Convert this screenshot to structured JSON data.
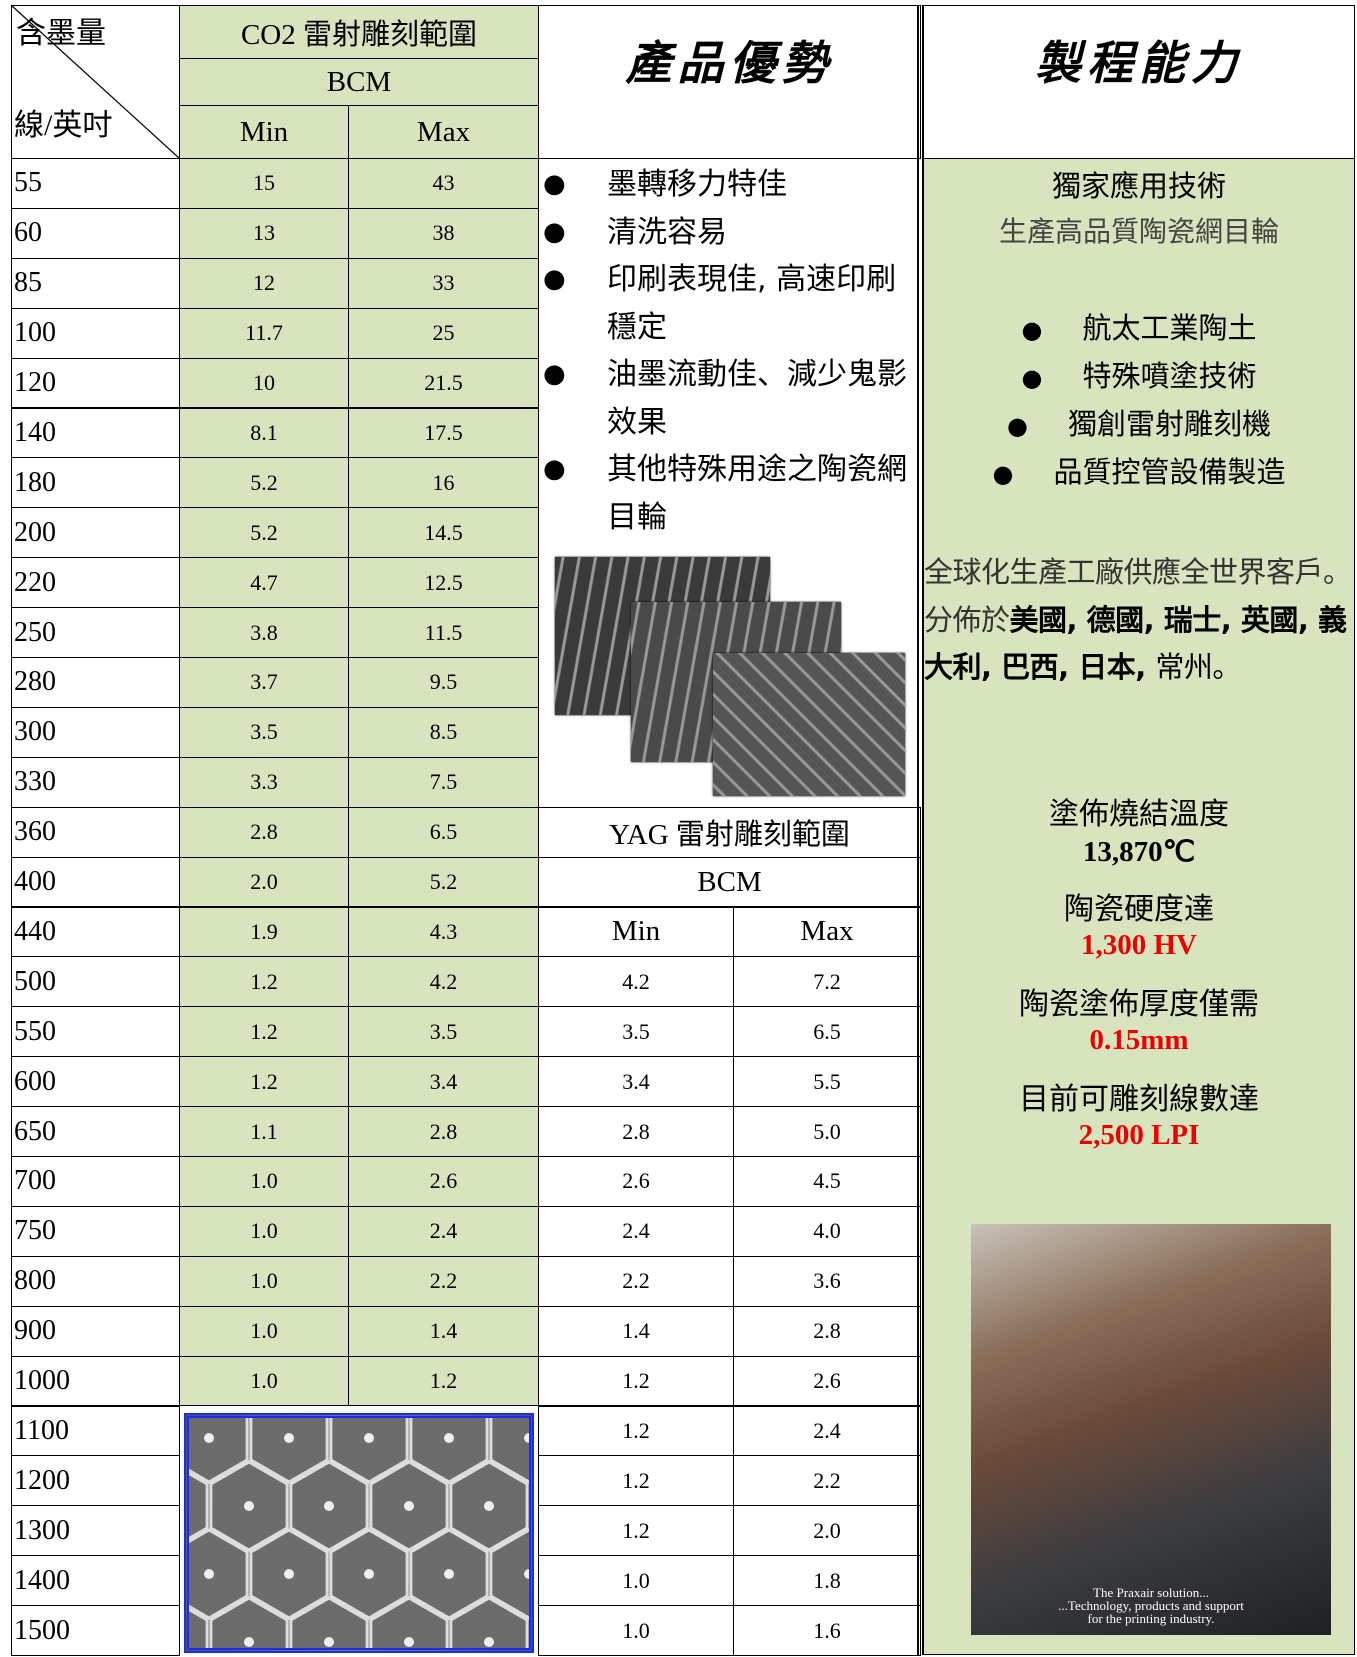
{
  "co2_table": {
    "corner_top": "含墨量",
    "corner_bottom": "線/英吋",
    "title": "CO2 雷射雕刻範圍",
    "unit": "BCM",
    "columns": [
      "Min",
      "Max"
    ],
    "lines": [
      "55",
      "60",
      "85",
      "100",
      "120",
      "140",
      "180",
      "200",
      "220",
      "250",
      "280",
      "300",
      "330",
      "360",
      "400",
      "440",
      "500",
      "550",
      "600",
      "650",
      "700",
      "750",
      "800",
      "900",
      "1000",
      "1100",
      "1200",
      "1300",
      "1400",
      "1500"
    ],
    "rows": [
      [
        "15",
        "43"
      ],
      [
        "13",
        "38"
      ],
      [
        "12",
        "33"
      ],
      [
        "11.7",
        "25"
      ],
      [
        "10",
        "21.5"
      ],
      [
        "8.1",
        "17.5"
      ],
      [
        "5.2",
        "16"
      ],
      [
        "5.2",
        "14.5"
      ],
      [
        "4.7",
        "12.5"
      ],
      [
        "3.8",
        "11.5"
      ],
      [
        "3.7",
        "9.5"
      ],
      [
        "3.5",
        "8.5"
      ],
      [
        "3.3",
        "7.5"
      ],
      [
        "2.8",
        "6.5"
      ],
      [
        "2.0",
        "5.2"
      ],
      [
        "1.9",
        "4.3"
      ],
      [
        "1.2",
        "4.2"
      ],
      [
        "1.2",
        "3.5"
      ],
      [
        "1.2",
        "3.4"
      ],
      [
        "1.1",
        "2.8"
      ],
      [
        "1.0",
        "2.6"
      ],
      [
        "1.0",
        "2.4"
      ],
      [
        "1.0",
        "2.2"
      ],
      [
        "1.0",
        "1.4"
      ],
      [
        "1.0",
        "1.2"
      ]
    ]
  },
  "advantages": {
    "title": "產品優勢",
    "items": [
      "墨轉移力特佳",
      "清洗容易",
      "印刷表現佳, 高速印刷穩定",
      "油墨流動佳、減少鬼影效果",
      "其他特殊用途之陶瓷網目輪"
    ]
  },
  "yag_table": {
    "title": "YAG 雷射雕刻範圍",
    "unit": "BCM",
    "columns": [
      "Min",
      "Max"
    ],
    "rows": [
      [
        "4.2",
        "7.2"
      ],
      [
        "3.5",
        "6.5"
      ],
      [
        "3.4",
        "5.5"
      ],
      [
        "2.8",
        "5.0"
      ],
      [
        "2.6",
        "4.5"
      ],
      [
        "2.4",
        "4.0"
      ],
      [
        "2.2",
        "3.6"
      ],
      [
        "1.4",
        "2.8"
      ],
      [
        "1.2",
        "2.6"
      ],
      [
        "1.2",
        "2.4"
      ],
      [
        "1.2",
        "2.2"
      ],
      [
        "1.2",
        "2.0"
      ],
      [
        "1.0",
        "1.8"
      ],
      [
        "1.0",
        "1.6"
      ]
    ]
  },
  "capability": {
    "title": "製程能力",
    "heading": "獨家應用技術",
    "subheading": "生產高品質陶瓷網目輪",
    "items": [
      "航太工業陶土",
      "特殊噴塗技術",
      "獨創雷射雕刻機",
      "品質控管設備製造"
    ],
    "global_intro": "全球化生產工廠供應全世界客戶。分佈於",
    "global_places": "美國, 德國, 瑞士, 英國, 義大利, 巴西, 日本, ",
    "global_end": "常州。",
    "specs": [
      {
        "label": "塗佈燒結溫度",
        "value": "13,870℃"
      },
      {
        "label": "陶瓷硬度達",
        "value": "1,300 HV"
      },
      {
        "label": "陶瓷塗佈厚度僅需",
        "value": "0.15mm"
      },
      {
        "label": "目前可雕刻線數達",
        "value": "2,500 LPI"
      }
    ],
    "photo_caption_1": "The Praxair solution...",
    "photo_caption_2": "...Technology, products and support",
    "photo_caption_3": "for the printing industry."
  }
}
